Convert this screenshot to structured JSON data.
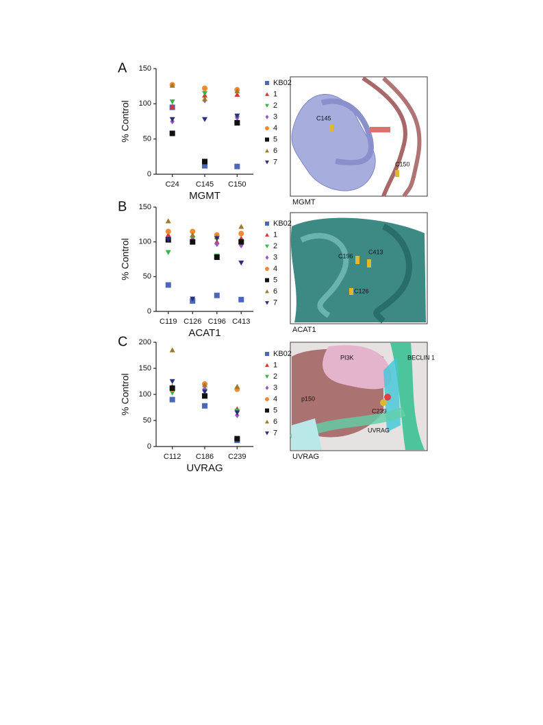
{
  "chart_data": [
    {
      "type": "scatter",
      "panel_label": "A",
      "title": "MGMT",
      "y_label": "% Control",
      "categories": [
        "C24",
        "C145",
        "C150"
      ],
      "ylim": [
        0,
        150
      ],
      "yticks": [
        0,
        50,
        100,
        150
      ],
      "series": [
        {
          "name": "KB02",
          "color": "#4a67b8",
          "marker": "square",
          "values": [
            95,
            12,
            11
          ]
        },
        {
          "name": "1",
          "color": "#e0332c",
          "marker": "triangle-up",
          "values": [
            96,
            112,
            113
          ]
        },
        {
          "name": "2",
          "color": "#3cb34a",
          "marker": "triangle-down",
          "values": [
            103,
            115,
            80
          ]
        },
        {
          "name": "3",
          "color": "#9a55c2",
          "marker": "diamond",
          "values": [
            75,
            105,
            80
          ]
        },
        {
          "name": "4",
          "color": "#f08a32",
          "marker": "circle",
          "values": [
            127,
            122,
            120
          ]
        },
        {
          "name": "5",
          "color": "#111111",
          "marker": "square",
          "values": [
            58,
            18,
            73
          ]
        },
        {
          "name": "6",
          "color": "#9c7b2c",
          "marker": "triangle-up",
          "values": [
            126,
            107,
            118
          ]
        },
        {
          "name": "7",
          "color": "#2b2d7e",
          "marker": "triangle-down",
          "values": [
            78,
            78,
            83
          ]
        }
      ],
      "image": {
        "caption": "MGMT",
        "labels": [
          "C145",
          "C150"
        ]
      }
    },
    {
      "type": "scatter",
      "panel_label": "B",
      "title": "ACAT1",
      "y_label": "% Control",
      "categories": [
        "C119",
        "C126",
        "C196",
        "C413"
      ],
      "ylim": [
        0,
        150
      ],
      "yticks": [
        0,
        50,
        100,
        150
      ],
      "series": [
        {
          "name": "KB02",
          "color": "#4a67b8",
          "marker": "square",
          "values": [
            38,
            15,
            23,
            17
          ]
        },
        {
          "name": "1",
          "color": "#e0332c",
          "marker": "triangle-up",
          "values": [
            110,
            105,
            100,
            105
          ]
        },
        {
          "name": "2",
          "color": "#3cb34a",
          "marker": "triangle-down",
          "values": [
            85,
            105,
            80,
            98
          ]
        },
        {
          "name": "3",
          "color": "#9a55c2",
          "marker": "diamond",
          "values": [
            105,
            103,
            97,
            95
          ]
        },
        {
          "name": "4",
          "color": "#f08a32",
          "marker": "circle",
          "values": [
            115,
            115,
            110,
            112
          ]
        },
        {
          "name": "5",
          "color": "#111111",
          "marker": "square",
          "values": [
            103,
            100,
            78,
            100
          ]
        },
        {
          "name": "6",
          "color": "#9c7b2c",
          "marker": "triangle-up",
          "values": [
            130,
            110,
            107,
            122
          ]
        },
        {
          "name": "7",
          "color": "#2b2d7e",
          "marker": "triangle-down",
          "values": [
            103,
            18,
            105,
            70
          ]
        }
      ],
      "image": {
        "caption": "ACAT1",
        "labels": [
          "C196",
          "C413",
          "C126"
        ]
      }
    },
    {
      "type": "scatter",
      "panel_label": "C",
      "title": "UVRAG",
      "y_label": "% Control",
      "categories": [
        "C112",
        "C186",
        "C239"
      ],
      "ylim": [
        0,
        200
      ],
      "yticks": [
        0,
        50,
        100,
        150,
        200
      ],
      "series": [
        {
          "name": "KB02",
          "color": "#4a67b8",
          "marker": "square",
          "values": [
            90,
            78,
            12
          ]
        },
        {
          "name": "1",
          "color": "#e0332c",
          "marker": "triangle-up",
          "values": [
            115,
            97,
            72
          ]
        },
        {
          "name": "2",
          "color": "#3cb34a",
          "marker": "triangle-down",
          "values": [
            103,
            107,
            68
          ]
        },
        {
          "name": "3",
          "color": "#9a55c2",
          "marker": "diamond",
          "values": [
            110,
            110,
            60
          ]
        },
        {
          "name": "4",
          "color": "#f08a32",
          "marker": "circle",
          "values": [
            110,
            120,
            110
          ]
        },
        {
          "name": "5",
          "color": "#111111",
          "marker": "square",
          "values": [
            112,
            97,
            15
          ]
        },
        {
          "name": "6",
          "color": "#9c7b2c",
          "marker": "triangle-up",
          "values": [
            185,
            118,
            115
          ]
        },
        {
          "name": "7",
          "color": "#2b2d7e",
          "marker": "triangle-down",
          "values": [
            125,
            105,
            65
          ]
        }
      ],
      "image": {
        "caption": "UVRAG",
        "labels": [
          "PI3K",
          "BECLIN 1",
          "p150",
          "C239",
          "UVRAG"
        ]
      }
    }
  ]
}
